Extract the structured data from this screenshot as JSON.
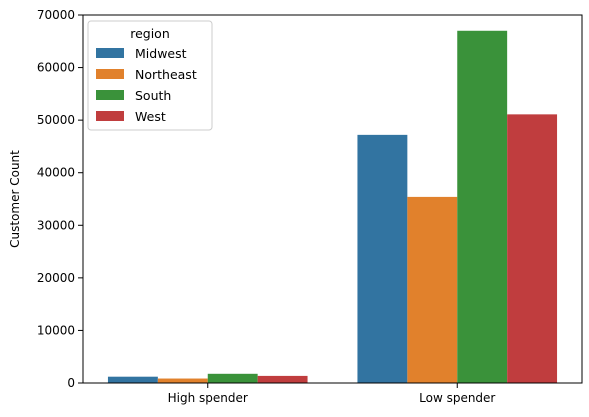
{
  "chart_data": {
    "type": "bar",
    "title": "",
    "xlabel": "",
    "ylabel": "Customer Count",
    "categories": [
      "High spender",
      "Low spender"
    ],
    "series": [
      {
        "name": "Midwest",
        "color": "#3274a1",
        "values": [
          1200,
          47200
        ]
      },
      {
        "name": "Northeast",
        "color": "#e1812c",
        "values": [
          850,
          35400
        ]
      },
      {
        "name": "South",
        "color": "#3a923a",
        "values": [
          1750,
          67000
        ]
      },
      {
        "name": "West",
        "color": "#c03d3e",
        "values": [
          1350,
          51100
        ]
      }
    ],
    "ylim": [
      0,
      70000
    ],
    "yticks": [
      0,
      10000,
      20000,
      30000,
      40000,
      50000,
      60000,
      70000
    ],
    "grid": false,
    "legend": {
      "title": "region",
      "placement": "top-left"
    }
  }
}
